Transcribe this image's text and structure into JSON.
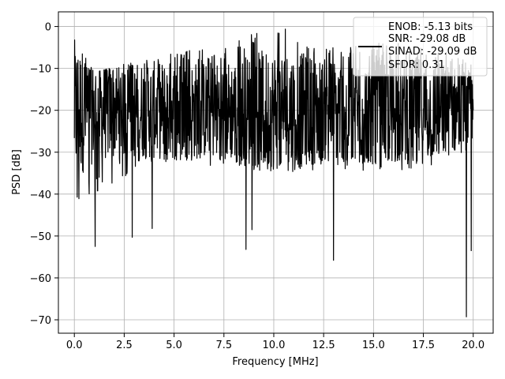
{
  "chart_data": {
    "type": "line",
    "xlabel": "Frequency [MHz]",
    "ylabel": "PSD [dB]",
    "xlim": [
      -0.8,
      21.0
    ],
    "ylim": [
      -73.2,
      3.5
    ],
    "x_ticks": [
      0.0,
      2.5,
      5.0,
      7.5,
      10.0,
      12.5,
      15.0,
      17.5,
      20.0
    ],
    "x_tick_labels": [
      "0.0",
      "2.5",
      "5.0",
      "7.5",
      "10.0",
      "12.5",
      "15.0",
      "17.5",
      "20.0"
    ],
    "y_ticks": [
      0,
      -10,
      -20,
      -30,
      -40,
      -50,
      -60,
      -70
    ],
    "y_tick_labels": [
      "0",
      "−10",
      "−20",
      "−30",
      "−40",
      "−50",
      "−60",
      "−70"
    ],
    "grid": true,
    "legend_position": "top-right",
    "series": [
      {
        "color": "#000000",
        "x_start": 0.0,
        "x_end": 20.0,
        "baseline_db": -20,
        "upper_envelope": [
          {
            "x": 0.0,
            "y": -3
          },
          {
            "x": 1.0,
            "y": -11
          },
          {
            "x": 2.5,
            "y": -9
          },
          {
            "x": 5.0,
            "y": -6
          },
          {
            "x": 7.5,
            "y": -5
          },
          {
            "x": 9.2,
            "y": -1
          },
          {
            "x": 10.8,
            "y": -0.5
          },
          {
            "x": 12.5,
            "y": -5
          },
          {
            "x": 15.0,
            "y": -4
          },
          {
            "x": 17.5,
            "y": -4
          },
          {
            "x": 20.0,
            "y": -8
          }
        ],
        "lower_envelope": [
          {
            "x": 0.0,
            "y": -43
          },
          {
            "x": 2.5,
            "y": -36
          },
          {
            "x": 5.0,
            "y": -34
          },
          {
            "x": 7.5,
            "y": -33
          },
          {
            "x": 10.0,
            "y": -35
          },
          {
            "x": 12.5,
            "y": -34
          },
          {
            "x": 15.0,
            "y": -35
          },
          {
            "x": 17.5,
            "y": -34
          },
          {
            "x": 20.0,
            "y": -30
          }
        ],
        "notable_dips": [
          {
            "x": 1.05,
            "y": -52.5
          },
          {
            "x": 2.9,
            "y": -50.3
          },
          {
            "x": 3.9,
            "y": -48.2
          },
          {
            "x": 8.6,
            "y": -53.2
          },
          {
            "x": 8.9,
            "y": -48.5
          },
          {
            "x": 13.0,
            "y": -55.8
          },
          {
            "x": 19.65,
            "y": -69.3
          },
          {
            "x": 19.9,
            "y": -53.5
          }
        ]
      }
    ],
    "legend": {
      "lines": [
        "ENOB: -5.13 bits",
        "SNR: -29.08 dB",
        "SINAD: -29.09 dB",
        "SFDR: 0.31"
      ]
    }
  }
}
